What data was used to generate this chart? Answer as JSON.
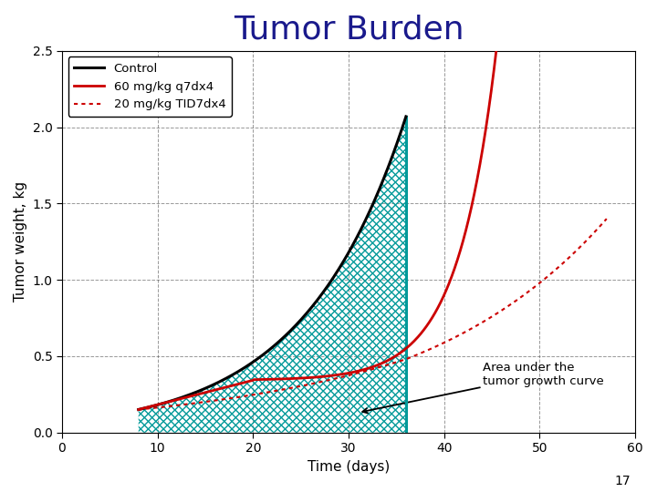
{
  "title": "Tumor Burden",
  "title_color": "#1a1a8c",
  "title_fontsize": 26,
  "xlabel": "Time (days)",
  "ylabel": "Tumor weight, kg",
  "xlim": [
    0,
    60
  ],
  "ylim": [
    0,
    2.5
  ],
  "xticks": [
    0,
    10,
    20,
    30,
    40,
    50,
    60
  ],
  "yticks": [
    0,
    0.5,
    1.0,
    1.5,
    2.0,
    2.5
  ],
  "control_color": "#000000",
  "dose60_color": "#cc0000",
  "dose20_color": "#cc0000",
  "hatch_color": "#009999",
  "vline_x": 36,
  "tumor_start_day": 8,
  "legend_labels": [
    "Control",
    "60 mg/kg q7dx4",
    "20 mg/kg TID7dx4"
  ],
  "annotation_text": "Area under the\ntumor growth curve",
  "footnote": "17",
  "background_color": "#ffffff",
  "grid_color": "#555555",
  "figsize": [
    7.2,
    5.4
  ],
  "dpi": 100,
  "k_ctrl": 0.09514,
  "A_ctrl": 0.15,
  "dose60_flat_end": 20,
  "dose60_flat_slope": 0.016,
  "dose60_k": 0.155,
  "dose20_k1": 0.028,
  "dose20_k2": 0.075
}
